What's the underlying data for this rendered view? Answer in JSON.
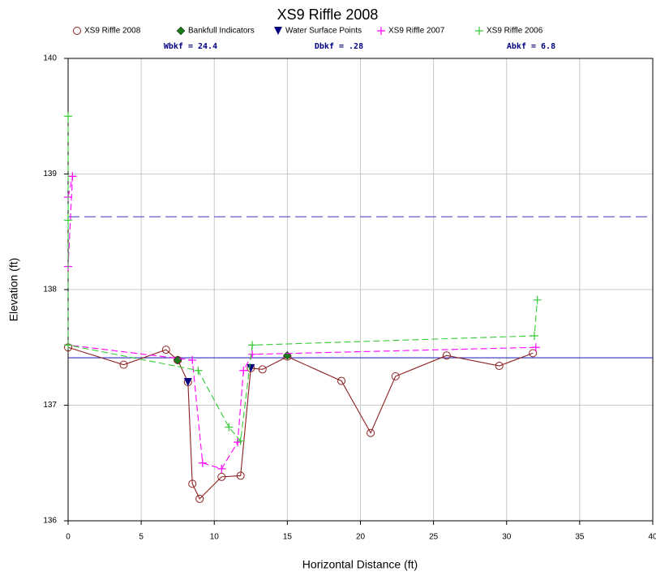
{
  "chart_data": {
    "type": "line",
    "title": "XS9 Riffle 2008",
    "x_label": "Horizontal Distance (ft)",
    "y_label": "Elevation (ft)",
    "annotations": [
      "Wbkf = 24.4",
      "Dbkf = .28",
      "Abkf = 6.8"
    ],
    "xlim": [
      0,
      40
    ],
    "ylim": [
      136,
      140
    ],
    "xticks": [
      0,
      5,
      10,
      15,
      20,
      25,
      30,
      35,
      40
    ],
    "yticks": [
      136,
      137,
      138,
      139,
      140
    ],
    "grid": true,
    "legend": "top",
    "reference_lines": [
      {
        "value": 138.63,
        "color": "#6a5acd",
        "dash": true
      },
      {
        "value": 137.41,
        "color": "#3030c0",
        "dash": false
      }
    ],
    "series": [
      {
        "name": "XS9 Riffle 2008",
        "color": "#8b2020",
        "marker": "circle",
        "line": "solid",
        "x": [
          0,
          3.8,
          6.7,
          7.5,
          8.2,
          8.5,
          9,
          10.5,
          11.8,
          12.5,
          13.3,
          15,
          18.7,
          20.7,
          22.4,
          25.9,
          29.5,
          31.8
        ],
        "values": [
          137.5,
          137.35,
          137.48,
          137.39,
          137.2,
          136.32,
          136.19,
          136.38,
          136.39,
          137.32,
          137.31,
          137.42,
          137.21,
          136.76,
          137.25,
          137.43,
          137.34,
          137.45
        ]
      },
      {
        "name": "Bankfull Indicators",
        "color": "#1a7a1a",
        "marker": "diamond",
        "line": "none",
        "x": [
          7.5,
          15
        ],
        "values": [
          137.39,
          137.43
        ]
      },
      {
        "name": "Water Surface Points",
        "color": "#000080",
        "marker": "triangle",
        "line": "none",
        "x": [
          8.2,
          12.5
        ],
        "values": [
          137.2,
          137.32
        ]
      },
      {
        "name": "XS9 Riffle 2007",
        "color": "#ff00ff",
        "marker": "plus",
        "line": "dash",
        "x": [
          0,
          0.3,
          0,
          0,
          8.5,
          9.2,
          10.5,
          11.6,
          12,
          12.6,
          32
        ],
        "values": [
          138.8,
          138.98,
          138.2,
          137.52,
          137.39,
          136.5,
          136.45,
          136.68,
          137.3,
          137.44,
          137.5
        ]
      },
      {
        "name": "XS9 Riffle 2006",
        "color": "#33cc33",
        "marker": "plus",
        "line": "dash",
        "x": [
          0,
          0,
          0,
          8.9,
          11,
          11.8,
          12.6,
          31.9,
          32.1
        ],
        "values": [
          139.5,
          138.6,
          137.52,
          137.3,
          136.81,
          136.69,
          137.52,
          137.6,
          137.91
        ]
      }
    ]
  }
}
